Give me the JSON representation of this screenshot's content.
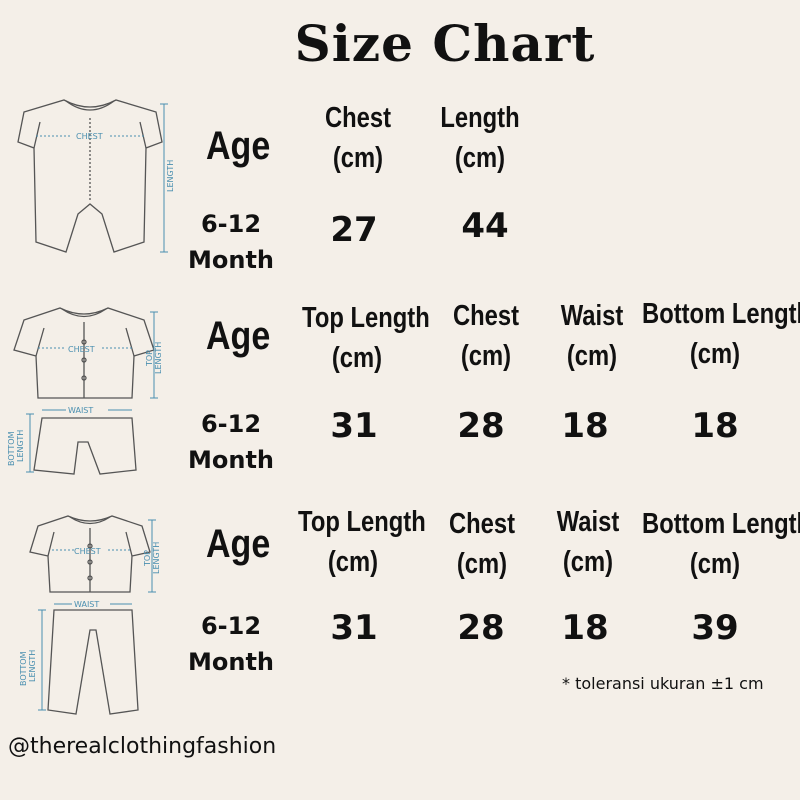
{
  "title": "Size Chart",
  "note": "* toleransi ukuran ±1 cm",
  "handle": "@therealclothingfashion",
  "colors": {
    "background": "#f4efe8",
    "text": "#111111",
    "measure_lines": "#4a8fb0"
  },
  "charts": [
    {
      "garment": "romper",
      "diagram_labels": {
        "chest": "CHEST",
        "length": "LENGTH"
      },
      "age_header": "Age",
      "age_value": [
        "6-12",
        "Month"
      ],
      "columns": [
        {
          "label": [
            "Chest",
            "(cm)"
          ],
          "value": "27"
        },
        {
          "label": [
            "Length",
            "(cm)"
          ],
          "value": "44"
        }
      ]
    },
    {
      "garment": "shirt-and-shorts",
      "diagram_labels": {
        "chest": "CHEST",
        "top_length": [
          "TOP",
          "LENGTH"
        ],
        "waist": "WAIST",
        "bottom_length": [
          "BOTTOM",
          "LENGTH"
        ]
      },
      "age_header": "Age",
      "age_value": [
        "6-12",
        "Month"
      ],
      "columns": [
        {
          "label": [
            "Top Length",
            "(cm)"
          ],
          "value": "31"
        },
        {
          "label": [
            "Chest",
            "(cm)"
          ],
          "value": "28"
        },
        {
          "label": [
            "Waist",
            "(cm)"
          ],
          "value": "18"
        },
        {
          "label": [
            "Bottom Length",
            "(cm)"
          ],
          "value": "18"
        }
      ]
    },
    {
      "garment": "shirt-and-pants",
      "diagram_labels": {
        "chest": "CHEST",
        "top_length": [
          "TOP",
          "LENGTH"
        ],
        "waist": "WAIST",
        "bottom_length": [
          "BOTTOM",
          "LENGTH"
        ]
      },
      "age_header": "Age",
      "age_value": [
        "6-12",
        "Month"
      ],
      "columns": [
        {
          "label": [
            "Top Length",
            "(cm)"
          ],
          "value": "31"
        },
        {
          "label": [
            "Chest",
            "(cm)"
          ],
          "value": "28"
        },
        {
          "label": [
            "Waist",
            "(cm)"
          ],
          "value": "18"
        },
        {
          "label": [
            "Bottom Length",
            "(cm)"
          ],
          "value": "39"
        }
      ]
    }
  ]
}
